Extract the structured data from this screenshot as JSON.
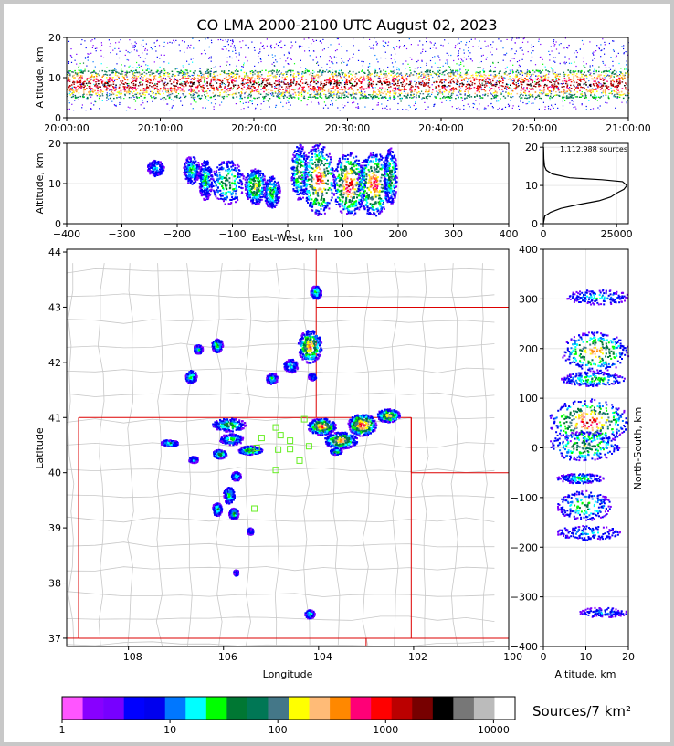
{
  "chart_data": {
    "title": "CO LMA 2000-2100 UTC August 02, 2023",
    "time_height": {
      "type": "heatmap",
      "ylabel": "Altitude, km",
      "ylim": [
        0,
        20
      ],
      "yticks": [
        "0",
        "10",
        "20"
      ],
      "xticks": [
        "20:00:00",
        "20:10:00",
        "20:20:00",
        "20:30:00",
        "20:40:00",
        "20:50:00",
        "21:00:00"
      ],
      "core_band_km": [
        5,
        12
      ],
      "sparse_band_km": [
        2,
        20
      ]
    },
    "ew_height": {
      "type": "heatmap",
      "xlabel": "East-West, km",
      "ylabel": "Altitude, km",
      "xlim": [
        -400,
        400
      ],
      "ylim": [
        0,
        20
      ],
      "xticks": [
        "−400",
        "−300",
        "−200",
        "−100",
        "0",
        "100",
        "200",
        "300",
        "400"
      ],
      "yticks": [
        "0",
        "10",
        "20"
      ],
      "blobs": [
        {
          "x": -240,
          "w": 15,
          "zlo": 12,
          "zhi": 16,
          "level": 4
        },
        {
          "x": -175,
          "w": 15,
          "zlo": 10,
          "zhi": 17,
          "level": 6
        },
        {
          "x": -150,
          "w": 12,
          "zlo": 6,
          "zhi": 16,
          "level": 6
        },
        {
          "x": -110,
          "w": 30,
          "zlo": 5,
          "zhi": 16,
          "level": 8
        },
        {
          "x": -60,
          "w": 20,
          "zlo": 5,
          "zhi": 14,
          "level": 10
        },
        {
          "x": -30,
          "w": 15,
          "zlo": 4,
          "zhi": 12,
          "level": 7
        },
        {
          "x": 20,
          "w": 15,
          "zlo": 6,
          "zhi": 20,
          "level": 9
        },
        {
          "x": 55,
          "w": 30,
          "zlo": 2,
          "zhi": 20,
          "level": 14
        },
        {
          "x": 110,
          "w": 30,
          "zlo": 2,
          "zhi": 18,
          "level": 15
        },
        {
          "x": 155,
          "w": 30,
          "zlo": 2,
          "zhi": 18,
          "level": 14
        },
        {
          "x": 185,
          "w": 12,
          "zlo": 5,
          "zhi": 19,
          "level": 8
        }
      ]
    },
    "altitude_histogram": {
      "type": "line",
      "annotation": "1,112,988 sources",
      "xlim": [
        0,
        29000
      ],
      "ylim": [
        0,
        21
      ],
      "xticks": [
        "0",
        "25000"
      ],
      "yticks": [
        "0",
        "10",
        "20"
      ],
      "points": [
        [
          0,
          0
        ],
        [
          500,
          2
        ],
        [
          2500,
          3
        ],
        [
          6000,
          4
        ],
        [
          12000,
          5
        ],
        [
          19000,
          6
        ],
        [
          23000,
          7
        ],
        [
          25000,
          8
        ],
        [
          27500,
          9
        ],
        [
          28500,
          10
        ],
        [
          27000,
          11
        ],
        [
          20000,
          11.5
        ],
        [
          9000,
          12
        ],
        [
          3000,
          13
        ],
        [
          1000,
          14
        ],
        [
          400,
          15
        ],
        [
          150,
          17
        ],
        [
          50,
          20
        ]
      ]
    },
    "plan_view": {
      "type": "heatmap",
      "xlabel": "Longitude",
      "ylabel": "Latitude",
      "xlim": [
        -109.3,
        -100.0
      ],
      "ylim": [
        36.85,
        44.05
      ],
      "xticks": [
        "−108",
        "−106",
        "−104",
        "−102",
        "−100"
      ],
      "yticks": [
        "37",
        "38",
        "39",
        "40",
        "41",
        "42",
        "43",
        "44"
      ],
      "stations": [
        [
          -104.3,
          40.97
        ],
        [
          -104.9,
          40.82
        ],
        [
          -105.2,
          40.63
        ],
        [
          -104.8,
          40.68
        ],
        [
          -104.6,
          40.58
        ],
        [
          -105.3,
          40.45
        ],
        [
          -104.85,
          40.42
        ],
        [
          -104.6,
          40.43
        ],
        [
          -104.2,
          40.48
        ],
        [
          -104.4,
          40.22
        ],
        [
          -104.9,
          40.05
        ],
        [
          -105.35,
          39.35
        ]
      ],
      "cells": [
        {
          "lon": -104.07,
          "lat": 43.28,
          "rx": 0.12,
          "ry": 0.12,
          "level": 6
        },
        {
          "lon": -104.2,
          "lat": 42.3,
          "rx": 0.25,
          "ry": 0.3,
          "level": 12
        },
        {
          "lon": -104.6,
          "lat": 41.95,
          "rx": 0.15,
          "ry": 0.12,
          "level": 5
        },
        {
          "lon": -105.0,
          "lat": 41.72,
          "rx": 0.12,
          "ry": 0.1,
          "level": 6
        },
        {
          "lon": -104.15,
          "lat": 41.75,
          "rx": 0.08,
          "ry": 0.06,
          "level": 4
        },
        {
          "lon": -106.15,
          "lat": 42.32,
          "rx": 0.12,
          "ry": 0.12,
          "level": 7
        },
        {
          "lon": -106.55,
          "lat": 42.25,
          "rx": 0.1,
          "ry": 0.08,
          "level": 5
        },
        {
          "lon": -106.7,
          "lat": 41.75,
          "rx": 0.12,
          "ry": 0.12,
          "level": 6
        },
        {
          "lon": -105.9,
          "lat": 40.88,
          "rx": 0.35,
          "ry": 0.12,
          "level": 8
        },
        {
          "lon": -105.85,
          "lat": 40.62,
          "rx": 0.25,
          "ry": 0.1,
          "level": 6
        },
        {
          "lon": -106.1,
          "lat": 40.35,
          "rx": 0.15,
          "ry": 0.08,
          "level": 8
        },
        {
          "lon": -105.45,
          "lat": 40.42,
          "rx": 0.25,
          "ry": 0.08,
          "level": 9
        },
        {
          "lon": -107.15,
          "lat": 40.55,
          "rx": 0.18,
          "ry": 0.06,
          "level": 6
        },
        {
          "lon": -106.65,
          "lat": 40.25,
          "rx": 0.1,
          "ry": 0.06,
          "level": 4
        },
        {
          "lon": -105.75,
          "lat": 39.95,
          "rx": 0.1,
          "ry": 0.08,
          "level": 6
        },
        {
          "lon": -105.9,
          "lat": 39.6,
          "rx": 0.12,
          "ry": 0.15,
          "level": 6
        },
        {
          "lon": -106.15,
          "lat": 39.35,
          "rx": 0.1,
          "ry": 0.12,
          "level": 6
        },
        {
          "lon": -105.8,
          "lat": 39.27,
          "rx": 0.1,
          "ry": 0.1,
          "level": 7
        },
        {
          "lon": -105.45,
          "lat": 38.95,
          "rx": 0.06,
          "ry": 0.06,
          "level": 4
        },
        {
          "lon": -105.75,
          "lat": 38.2,
          "rx": 0.05,
          "ry": 0.05,
          "level": 3
        },
        {
          "lon": -104.2,
          "lat": 37.45,
          "rx": 0.1,
          "ry": 0.08,
          "level": 5
        },
        {
          "lon": -103.95,
          "lat": 40.85,
          "rx": 0.3,
          "ry": 0.15,
          "level": 13
        },
        {
          "lon": -103.55,
          "lat": 40.6,
          "rx": 0.35,
          "ry": 0.15,
          "level": 12
        },
        {
          "lon": -103.1,
          "lat": 40.88,
          "rx": 0.3,
          "ry": 0.2,
          "level": 15
        },
        {
          "lon": -102.55,
          "lat": 41.05,
          "rx": 0.25,
          "ry": 0.12,
          "level": 11
        },
        {
          "lon": -103.65,
          "lat": 40.4,
          "rx": 0.12,
          "ry": 0.06,
          "level": 8
        }
      ]
    },
    "ns_height": {
      "type": "heatmap",
      "xlabel": "Altitude, km",
      "ylabel": "North-South, km",
      "xlim": [
        0,
        20
      ],
      "ylim": [
        -400,
        400
      ],
      "xticks": [
        "0",
        "10",
        "20"
      ],
      "yticks": [
        "−400",
        "−300",
        "−200",
        "−100",
        "0",
        "100",
        "200",
        "300",
        "400"
      ],
      "blobs": [
        {
          "y": 305,
          "h": 15,
          "zlo": 5,
          "zhi": 20,
          "level": 5
        },
        {
          "y": 195,
          "h": 40,
          "zlo": 4,
          "zhi": 20,
          "level": 12
        },
        {
          "y": 140,
          "h": 15,
          "zlo": 4,
          "zhi": 19,
          "level": 7
        },
        {
          "y": 55,
          "h": 45,
          "zlo": 1,
          "zhi": 20,
          "level": 15
        },
        {
          "y": 5,
          "h": 30,
          "zlo": 1,
          "zhi": 18,
          "level": 9
        },
        {
          "y": -60,
          "h": 10,
          "zlo": 3,
          "zhi": 14,
          "level": 6
        },
        {
          "y": -115,
          "h": 30,
          "zlo": 3,
          "zhi": 16,
          "level": 7
        },
        {
          "y": -170,
          "h": 15,
          "zlo": 3,
          "zhi": 18,
          "level": 4
        },
        {
          "y": -330,
          "h": 10,
          "zlo": 8,
          "zhi": 20,
          "level": 3
        }
      ]
    },
    "colorbar": {
      "label": "Sources/7 km²",
      "ticks": [
        "1",
        "10",
        "100",
        "1000",
        "10000"
      ],
      "colors": [
        "#ff55ff",
        "#8800ff",
        "#7700ff",
        "#0000ff",
        "#0000ee",
        "#0077ff",
        "#00ffff",
        "#00ff00",
        "#007733",
        "#007755",
        "#447788",
        "#ffff00",
        "#ffbb77",
        "#ff8800",
        "#ff0077",
        "#ff0000",
        "#bb0000",
        "#770000",
        "#000000",
        "#777777",
        "#bbbbbb",
        "#ffffff"
      ]
    }
  }
}
